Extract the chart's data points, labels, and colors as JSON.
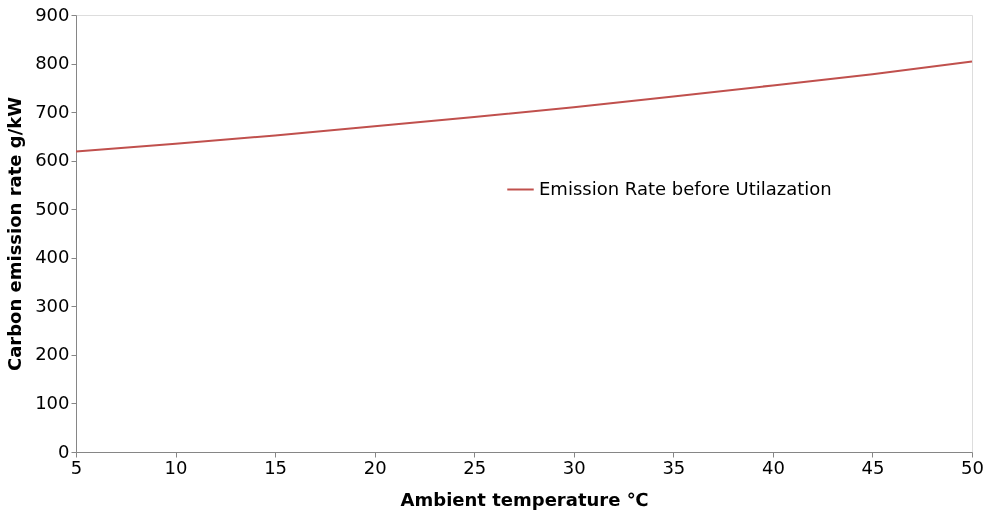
{
  "chart_data": {
    "type": "line",
    "xlabel": "Ambient temperature ℃",
    "ylabel": "Carbon emission rate g/kW",
    "x": [
      5,
      10,
      15,
      20,
      25,
      30,
      35,
      40,
      45,
      50
    ],
    "series": [
      {
        "name": "Emission Rate before Utilazation",
        "color": "#c0504d",
        "values": [
          619,
          635,
          652,
          671,
          690,
          710,
          732,
          755,
          778,
          804
        ]
      }
    ],
    "xlim": [
      5,
      50
    ],
    "xticks": [
      5,
      10,
      15,
      20,
      25,
      30,
      35,
      40,
      45,
      50
    ],
    "ylim": [
      0,
      900
    ],
    "yticks": [
      0,
      100,
      200,
      300,
      400,
      500,
      600,
      700,
      800,
      900
    ],
    "grid": false,
    "legend": "right",
    "marker": "none",
    "line_style": "solid"
  }
}
